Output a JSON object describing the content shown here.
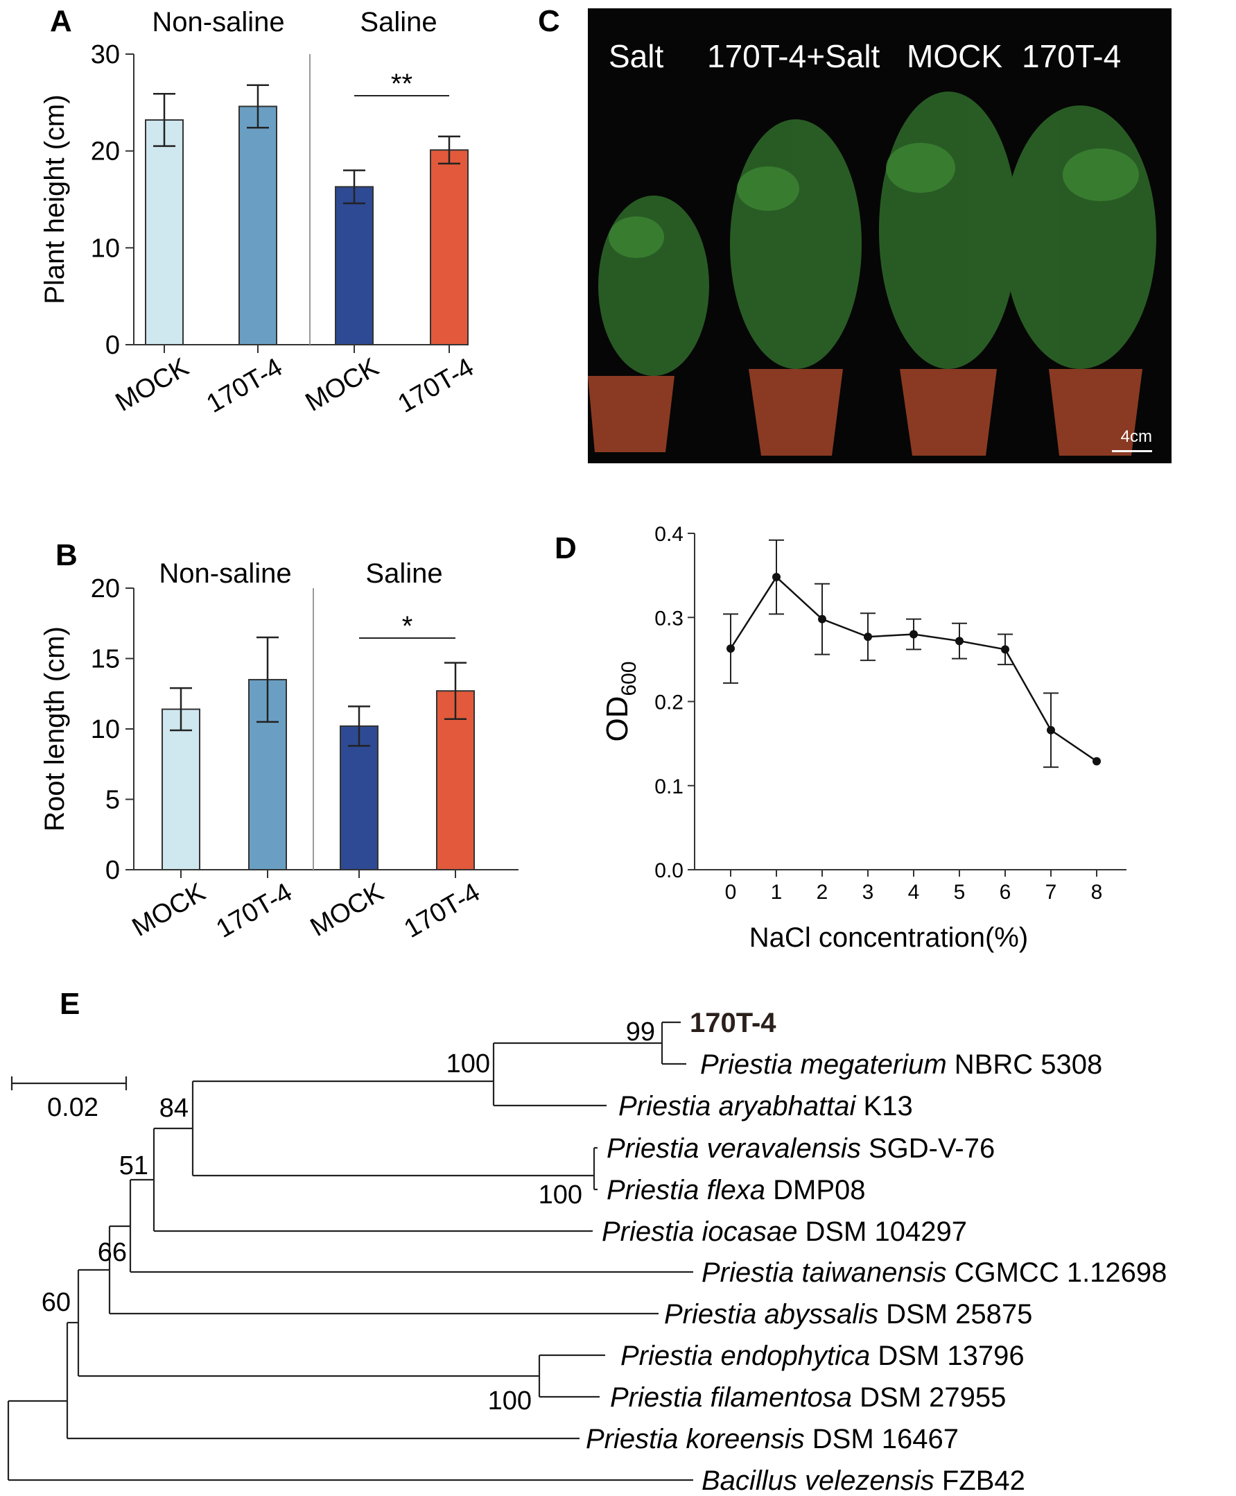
{
  "panels": {
    "a": "A",
    "b": "B",
    "c": "C",
    "d": "D",
    "e": "E"
  },
  "chart_data": [
    {
      "panel": "A",
      "type": "bar",
      "ylabel": "Plant height (cm)",
      "ylim": [
        0,
        30
      ],
      "yticks": [
        "0",
        "10",
        "20",
        "30"
      ],
      "groups": [
        "Non-saline",
        "Saline"
      ],
      "categories": [
        "MOCK",
        "170T-4",
        "MOCK",
        "170T-4"
      ],
      "values": [
        23.2,
        24.6,
        16.3,
        20.1
      ],
      "errors": [
        2.7,
        2.2,
        1.7,
        1.4
      ],
      "colors": [
        "#cfe7ee",
        "#6a9fc3",
        "#2e4a94",
        "#e25a3b"
      ],
      "significance": "**"
    },
    {
      "panel": "B",
      "type": "bar",
      "ylabel": "Root length (cm)",
      "ylim": [
        0,
        20
      ],
      "yticks": [
        "0",
        "5",
        "10",
        "15",
        "20"
      ],
      "groups": [
        "Non-saline",
        "Saline"
      ],
      "categories": [
        "MOCK",
        "170T-4",
        "MOCK",
        "170T-4"
      ],
      "values": [
        11.4,
        13.5,
        10.2,
        12.7
      ],
      "errors": [
        1.5,
        3.0,
        1.4,
        2.0
      ],
      "colors": [
        "#cfe7ee",
        "#6a9fc3",
        "#2e4a94",
        "#e25a3b"
      ],
      "significance": "*"
    },
    {
      "panel": "D",
      "type": "line",
      "xlabel": "NaCl concentration(%)",
      "ylabel_main": "OD",
      "ylabel_sub": "600",
      "x": [
        0,
        1,
        2,
        3,
        4,
        5,
        6,
        7,
        8
      ],
      "xticks": [
        "0",
        "1",
        "2",
        "3",
        "4",
        "5",
        "6",
        "7",
        "8"
      ],
      "ylim": [
        0,
        0.4
      ],
      "yticks": [
        "0.0",
        "0.1",
        "0.2",
        "0.3",
        "0.4"
      ],
      "values": [
        0.263,
        0.348,
        0.298,
        0.277,
        0.28,
        0.272,
        0.262,
        0.166,
        0.129
      ],
      "errors": [
        0.041,
        0.044,
        0.042,
        0.028,
        0.018,
        0.021,
        0.018,
        0.044,
        0
      ]
    }
  ],
  "photo": {
    "labels": [
      "Salt",
      "170T-4+Salt",
      "MOCK",
      "170T-4"
    ],
    "scale_bar": "4cm"
  },
  "tree": {
    "scale_bar": "0.02",
    "bootstrap": [
      "99",
      "100",
      "84",
      "51",
      "100",
      "66",
      "60",
      "100"
    ],
    "leaves": [
      {
        "genus": "",
        "species": "",
        "strain": "170T-4",
        "bold": true
      },
      {
        "genus": "Priestia",
        "species": "megaterium",
        "strain": "NBRC 5308"
      },
      {
        "genus": "Priestia",
        "species": "aryabhattai",
        "strain": "K13"
      },
      {
        "genus": "Priestia",
        "species": "veravalensis",
        "strain": "SGD-V-76"
      },
      {
        "genus": "Priestia",
        "species": "flexa",
        "strain": "DMP08"
      },
      {
        "genus": "Priestia",
        "species": "iocasae",
        "strain": "DSM 104297"
      },
      {
        "genus": "Priestia",
        "species": "taiwanensis",
        "strain": "CGMCC 1.12698"
      },
      {
        "genus": "Priestia",
        "species": "abyssalis",
        "strain": "DSM 25875"
      },
      {
        "genus": "Priestia",
        "species": "endophytica",
        "strain": "DSM 13796"
      },
      {
        "genus": "Priestia",
        "species": "filamentosa",
        "strain": "DSM 27955"
      },
      {
        "genus": "Priestia",
        "species": "koreensis",
        "strain": "DSM 16467"
      },
      {
        "genus": "Bacillus",
        "species": "velezensis",
        "strain": "FZB42"
      }
    ]
  }
}
